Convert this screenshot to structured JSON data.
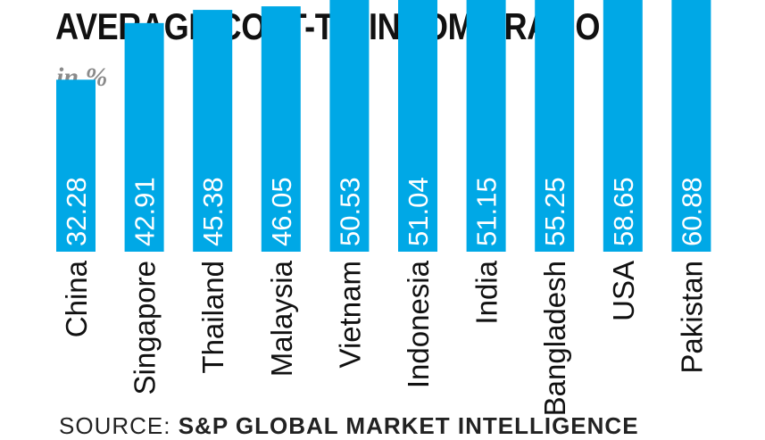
{
  "chart_data": {
    "type": "bar",
    "title": "AVERAGE COST-TO-INCOME RATIO",
    "subtitle": "in %",
    "categories": [
      "China",
      "Singapore",
      "Thailand",
      "Malaysia",
      "Vietnam",
      "Indonesia",
      "India",
      "Bangladesh",
      "USA",
      "Pakistan"
    ],
    "values": [
      32.28,
      42.91,
      45.38,
      46.05,
      50.53,
      51.04,
      51.15,
      55.25,
      58.65,
      60.88
    ],
    "value_labels": [
      "32.28",
      "42.91",
      "45.38",
      "46.05",
      "50.53",
      "51.04",
      "51.15",
      "55.25",
      "58.65",
      "60.88"
    ],
    "xlabel": "",
    "ylabel": "",
    "bar_color": "#00a8e6",
    "grid": false,
    "legend": "none"
  },
  "source": {
    "prefix": "SOURCE:",
    "name": "S&P GLOBAL MARKET INTELLIGENCE"
  }
}
